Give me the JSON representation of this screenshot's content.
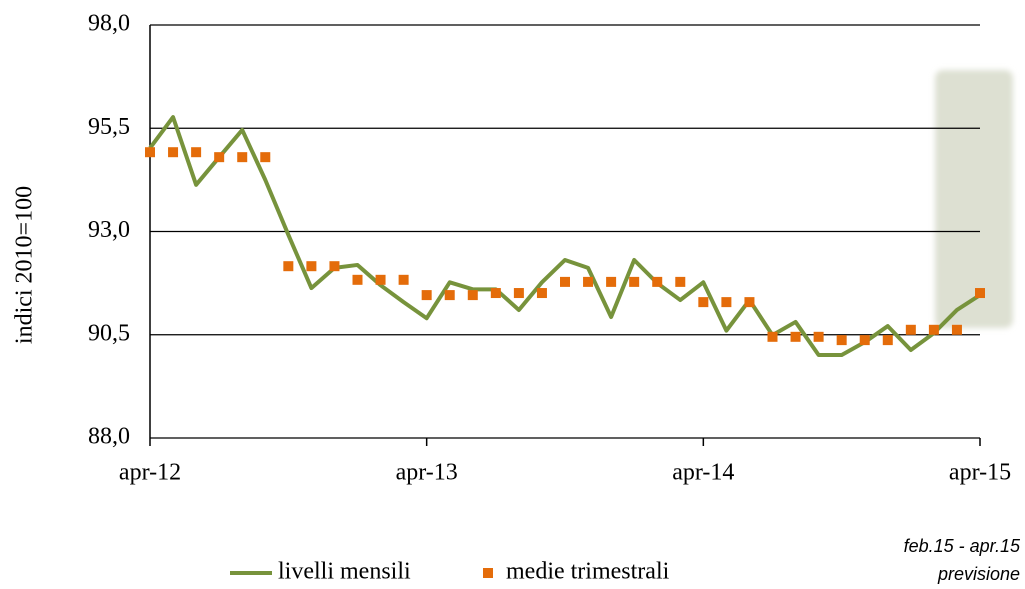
{
  "chart_data": {
    "type": "line",
    "ylabel": "indici 2010=100",
    "categories": [
      "apr-12",
      null,
      null,
      null,
      null,
      null,
      null,
      null,
      null,
      null,
      null,
      null,
      "apr-13",
      null,
      null,
      null,
      null,
      null,
      null,
      null,
      null,
      null,
      null,
      null,
      "apr-14",
      null,
      null,
      null,
      null,
      null,
      null,
      null,
      null,
      null,
      null,
      null,
      "apr-15"
    ],
    "series": [
      {
        "name": "livelli mensili",
        "color": "#77933c",
        "style": "line",
        "values": [
          95.02,
          95.77,
          94.13,
          94.8,
          95.46,
          94.25,
          92.92,
          91.63,
          92.12,
          92.19,
          91.7,
          91.29,
          90.9,
          91.77,
          91.6,
          91.6,
          91.1,
          91.77,
          92.31,
          92.12,
          90.93,
          92.31,
          91.75,
          91.34,
          91.77,
          90.6,
          91.34,
          90.49,
          90.81,
          90.01,
          90.01,
          90.32,
          90.71,
          90.13,
          90.54,
          91.1,
          91.46
        ]
      },
      {
        "name": "medie trimestrali",
        "color": "#e46c0a",
        "style": "markers",
        "values": [
          94.92,
          94.92,
          94.92,
          94.8,
          94.8,
          94.8,
          92.16,
          92.16,
          92.16,
          91.83,
          91.83,
          91.83,
          91.46,
          91.46,
          91.46,
          91.51,
          91.51,
          91.51,
          91.78,
          91.78,
          91.78,
          91.78,
          91.78,
          91.78,
          91.29,
          91.29,
          91.29,
          90.45,
          90.45,
          90.45,
          90.37,
          90.37,
          90.37,
          90.62,
          90.62,
          90.62,
          91.51
        ]
      }
    ],
    "ylim": [
      88.0,
      98.0
    ],
    "yticks": [
      {
        "value": 88.0,
        "label": "88,0"
      },
      {
        "value": 90.5,
        "label": "90,5"
      },
      {
        "value": 93.0,
        "label": "93,0"
      },
      {
        "value": 95.5,
        "label": "95,5"
      },
      {
        "value": 98.0,
        "label": "98,0"
      }
    ],
    "grid": true,
    "annotation": [
      "feb.15 - apr.15",
      "previsione"
    ]
  }
}
